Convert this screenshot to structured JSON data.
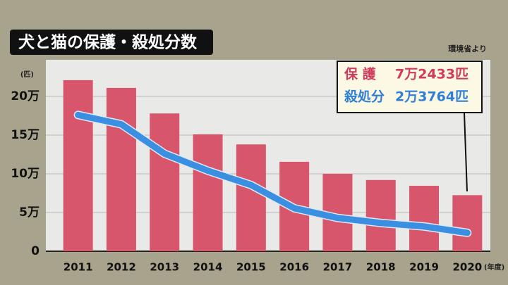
{
  "chart_data": {
    "type": "bar-line",
    "title": "犬と猫の保護・殺処分数",
    "source": "環境省より",
    "y_unit": "(匹)",
    "x_unit": "(年度)",
    "categories": [
      "2011",
      "2012",
      "2013",
      "2014",
      "2015",
      "2016",
      "2017",
      "2018",
      "2019",
      "2020"
    ],
    "series": [
      {
        "name": "保 護",
        "type": "bar",
        "color": "#d8566c",
        "label_color": "#d23a5c",
        "values": [
          221000,
          211000,
          178000,
          151000,
          138000,
          115500,
          100000,
          92000,
          84500,
          72433
        ],
        "value_labels": [
          null,
          null,
          null,
          null,
          null,
          null,
          null,
          null,
          null,
          "7万2433匹"
        ]
      },
      {
        "name": "殺処分",
        "type": "line",
        "color": "#3a8fe0",
        "label_color": "#2f7fd6",
        "values": [
          176000,
          164000,
          126000,
          104000,
          85500,
          55500,
          43000,
          36500,
          32000,
          23764
        ],
        "value_labels": [
          null,
          null,
          null,
          null,
          null,
          null,
          null,
          null,
          null,
          "2万3764匹"
        ]
      }
    ],
    "ylim": [
      0,
      250000
    ],
    "yticks": [
      0,
      {
        "value": 50000,
        "label": "5万"
      },
      {
        "value": 100000,
        "label": "10万"
      },
      {
        "value": 150000,
        "label": "15万"
      },
      {
        "value": 200000,
        "label": "20万"
      }
    ],
    "grid": true
  }
}
